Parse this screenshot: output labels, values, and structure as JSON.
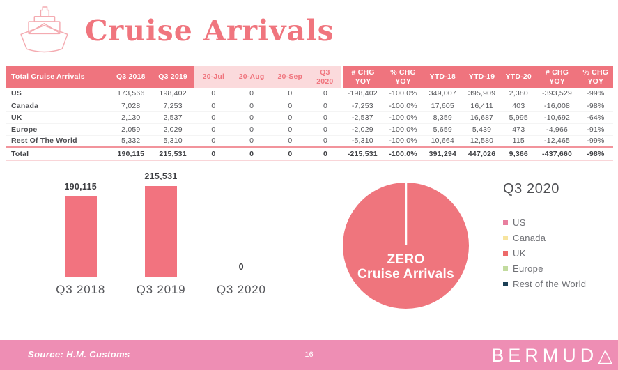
{
  "header": {
    "title": "Cruise Arrivals",
    "icon": "cruise-ship"
  },
  "table": {
    "columns": [
      "Total Cruise Arrivals",
      "Q3 2018",
      "Q3 2019",
      "20-Jul",
      "20-Aug",
      "20-Sep",
      "Q3 2020",
      "# CHG YOY",
      "% CHG YOY",
      "YTD-18",
      "YTD-19",
      "YTD-20",
      "# CHG YOY",
      "% CHG YOY"
    ],
    "rows": [
      [
        "US",
        "173,566",
        "198,402",
        "0",
        "0",
        "0",
        "0",
        "-198,402",
        "-100.0%",
        "349,007",
        "395,909",
        "2,380",
        "-393,529",
        "-99%"
      ],
      [
        "Canada",
        "7,028",
        "7,253",
        "0",
        "0",
        "0",
        "0",
        "-7,253",
        "-100.0%",
        "17,605",
        "16,411",
        "403",
        "-16,008",
        "-98%"
      ],
      [
        "UK",
        "2,130",
        "2,537",
        "0",
        "0",
        "0",
        "0",
        "-2,537",
        "-100.0%",
        "8,359",
        "16,687",
        "5,995",
        "-10,692",
        "-64%"
      ],
      [
        "Europe",
        "2,059",
        "2,029",
        "0",
        "0",
        "0",
        "0",
        "-2,029",
        "-100.0%",
        "5,659",
        "5,439",
        "473",
        "-4,966",
        "-91%"
      ],
      [
        "Rest Of The World",
        "5,332",
        "5,310",
        "0",
        "0",
        "0",
        "0",
        "-5,310",
        "-100.0%",
        "10,664",
        "12,580",
        "115",
        "-12,465",
        "-99%"
      ]
    ],
    "total_row": [
      "Total",
      "190,115",
      "215,531",
      "0",
      "0",
      "0",
      "0",
      "-215,531",
      "-100.0%",
      "391,294",
      "447,026",
      "9,366",
      "-437,660",
      "-98%"
    ]
  },
  "chart_data": [
    {
      "type": "bar",
      "title": "",
      "categories": [
        "Q3 2018",
        "Q3 2019",
        "Q3 2020"
      ],
      "values": [
        190115,
        215531,
        0
      ],
      "value_labels": [
        "190,115",
        "215,531",
        "0"
      ],
      "bar_color": "#F2737F",
      "ylim": [
        0,
        215531
      ],
      "grid": false,
      "legend_position": "none"
    },
    {
      "type": "pie",
      "title": "Q3 2020",
      "categories": [
        "US",
        "Canada",
        "UK",
        "Europe",
        "Rest of the World"
      ],
      "values": [
        0,
        0,
        0,
        0,
        0
      ],
      "colors": [
        "#E87F9F",
        "#F7E49E",
        "#ED6A6A",
        "#C2DB9E",
        "#1C4056"
      ],
      "center_text": [
        "ZERO",
        "Cruise Arrivals"
      ],
      "pie_fill": "#EF757D",
      "legend_position": "right"
    }
  ],
  "pie": {
    "line1": "ZERO",
    "line2": "Cruise Arrivals"
  },
  "legend": {
    "title": "Q3 2020",
    "items": [
      {
        "label": "US",
        "color": "#E87F9F"
      },
      {
        "label": "Canada",
        "color": "#F7E49E"
      },
      {
        "label": "UK",
        "color": "#ED6A6A"
      },
      {
        "label": "Europe",
        "color": "#C2DB9E"
      },
      {
        "label": "Rest of the World",
        "color": "#1C4056"
      }
    ]
  },
  "footer": {
    "source": "Source: H.M. Customs",
    "page": "16",
    "brand_main": "BERMUD",
    "brand_mark": "△"
  },
  "colors": {
    "accent_coral": "#EF747E",
    "light_pink": "#FBDADC",
    "footer_pink": "#EE8EB4",
    "title_coral": "#F0757E"
  }
}
